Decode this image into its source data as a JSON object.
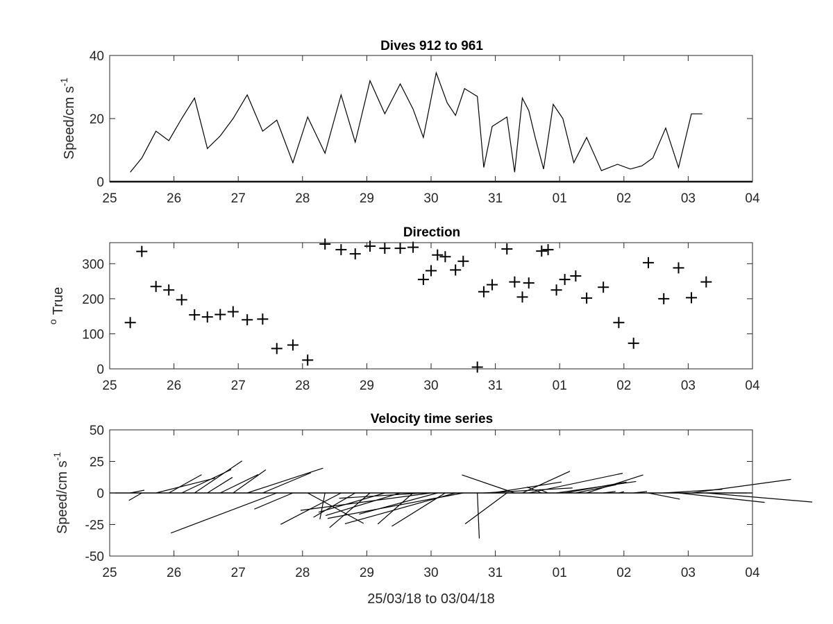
{
  "chart_data": [
    {
      "type": "line",
      "title": "Dives 912 to 961",
      "ylabel": "Speed/cm s",
      "ylabel_sup": "-1",
      "xlim": [
        25,
        35
      ],
      "ylim": [
        0,
        40
      ],
      "xticks": [
        "25",
        "26",
        "27",
        "28",
        "29",
        "30",
        "31",
        "01",
        "02",
        "03",
        "04"
      ],
      "yticks": [
        "0",
        "20",
        "40"
      ],
      "x": [
        25.32,
        25.5,
        25.72,
        25.92,
        26.12,
        26.32,
        26.52,
        26.72,
        26.92,
        27.14,
        27.38,
        27.6,
        27.85,
        28.08,
        28.35,
        28.6,
        28.82,
        29.05,
        29.28,
        29.52,
        29.72,
        29.88,
        30.08,
        30.25,
        30.38,
        30.52,
        30.72,
        30.82,
        30.95,
        31.18,
        31.3,
        31.42,
        31.52,
        31.62,
        31.75,
        31.9,
        32.05,
        32.22,
        32.42,
        32.65,
        32.9,
        33.1,
        33.28,
        33.45,
        33.65,
        33.85,
        34.05,
        34.22
      ],
      "values": [
        3,
        7.5,
        16,
        13,
        20,
        26.5,
        10.5,
        14.5,
        20,
        27.5,
        16,
        19.5,
        6,
        20.5,
        9,
        27.5,
        12.5,
        32,
        21.5,
        31,
        23,
        14,
        34.5,
        25,
        21,
        29.5,
        27,
        4.5,
        17.5,
        20.5,
        3,
        26.5,
        22.5,
        14,
        4,
        24.5,
        20,
        6,
        14,
        3.5,
        5.5,
        4,
        5,
        7.5,
        17,
        4.5,
        21.5,
        21.5
      ]
    },
    {
      "type": "scatter",
      "title": "Direction",
      "ylabel": "True",
      "ylabel_sup": "o",
      "xlim": [
        25,
        35
      ],
      "ylim": [
        0,
        360
      ],
      "xticks": [
        "25",
        "26",
        "27",
        "28",
        "29",
        "30",
        "31",
        "01",
        "02",
        "03",
        "04"
      ],
      "yticks": [
        "0",
        "100",
        "200",
        "300"
      ],
      "x": [
        25.32,
        25.5,
        25.72,
        25.92,
        26.12,
        26.32,
        26.52,
        26.72,
        26.92,
        27.14,
        27.38,
        27.6,
        27.85,
        28.08,
        28.35,
        28.6,
        28.82,
        29.05,
        29.28,
        29.52,
        29.72,
        29.88,
        30.0,
        30.1,
        30.22,
        30.38,
        30.5,
        30.72,
        30.82,
        30.95,
        31.18,
        31.3,
        31.42,
        31.52,
        31.72,
        31.82,
        31.95,
        32.08,
        32.25,
        32.42,
        32.68,
        32.92,
        33.15,
        33.38,
        33.62,
        33.85,
        34.05,
        34.28
      ],
      "values": [
        132,
        335,
        235,
        225,
        197,
        154,
        148,
        155,
        163,
        140,
        142,
        58,
        68,
        25,
        356,
        340,
        328,
        350,
        344,
        344,
        347,
        255,
        280,
        325,
        320,
        282,
        307,
        5,
        220,
        240,
        342,
        248,
        205,
        245,
        336,
        340,
        225,
        255,
        265,
        202,
        233,
        132,
        73,
        303,
        200,
        288,
        203,
        248
      ]
    },
    {
      "type": "quiver",
      "title": "Velocity time series",
      "ylabel": "Speed/cm s",
      "ylabel_sup": "-1",
      "xlabel": "25/03/18 to 03/04/18",
      "xlim": [
        25,
        35
      ],
      "ylim": [
        -50,
        50
      ],
      "xticks": [
        "25",
        "26",
        "27",
        "28",
        "29",
        "30",
        "31",
        "01",
        "02",
        "03",
        "04"
      ],
      "yticks": [
        "-50",
        "-25",
        "0",
        "25",
        "50"
      ],
      "x": [
        25.32,
        25.5,
        25.72,
        25.92,
        26.12,
        26.32,
        26.52,
        26.72,
        26.92,
        27.14,
        27.38,
        27.6,
        27.85,
        28.08,
        28.35,
        28.6,
        28.82,
        29.05,
        29.28,
        29.52,
        29.72,
        29.88,
        30.0,
        30.1,
        30.22,
        30.38,
        30.5,
        30.72,
        30.82,
        30.95,
        31.18,
        31.3,
        31.42,
        31.52,
        31.72,
        31.82,
        31.95,
        32.08,
        32.25,
        32.42,
        32.68,
        32.92,
        33.15,
        33.38,
        33.62,
        33.85,
        34.05,
        34.28
      ],
      "u": [
        2.2,
        -2,
        9.2,
        5.1,
        7.7,
        7.4,
        3.9,
        5.9,
        5.1,
        11.8,
        7.5,
        -16.5,
        -6,
        8.7,
        -0.8,
        -9.4,
        -6.5,
        -6.3,
        -10.3,
        -11.6,
        -5.5,
        -13.1,
        -20.3,
        -12.2,
        -8.3,
        -17.2,
        -21.1,
        0.3,
        13.8,
        10.8,
        -6.5,
        -8.2,
        7.4,
        14.6,
        -2.3,
        -1.3,
        12.4,
        9.6,
        6.3,
        8.8,
        1.9,
        0.8,
        2.1,
        4.9,
        9.1,
        13.4,
        15.5,
        16.5
      ],
      "v": [
        2.2,
        -5.9,
        11.8,
        14.5,
        18.6,
        25.4,
        12.4,
        14.6,
        18.4,
        19.7,
        16,
        -31.8,
        -12.8,
        -24.1,
        -20.9,
        -24.9,
        -19.3,
        -27.5,
        -15.3,
        -17.9,
        -24.7,
        -4.2,
        -13.8,
        -16.8,
        -26.4,
        -24.4,
        -20.2,
        -36.1,
        4,
        8.7,
        -24.5,
        14.3,
        17.2,
        15.6,
        4.8,
        2.7,
        9.1,
        8.7,
        6.5,
        14.3,
        1.2,
        1,
        1.2,
        -4.9,
        2.9,
        -7.5,
        10.8,
        -7.2
      ]
    }
  ]
}
